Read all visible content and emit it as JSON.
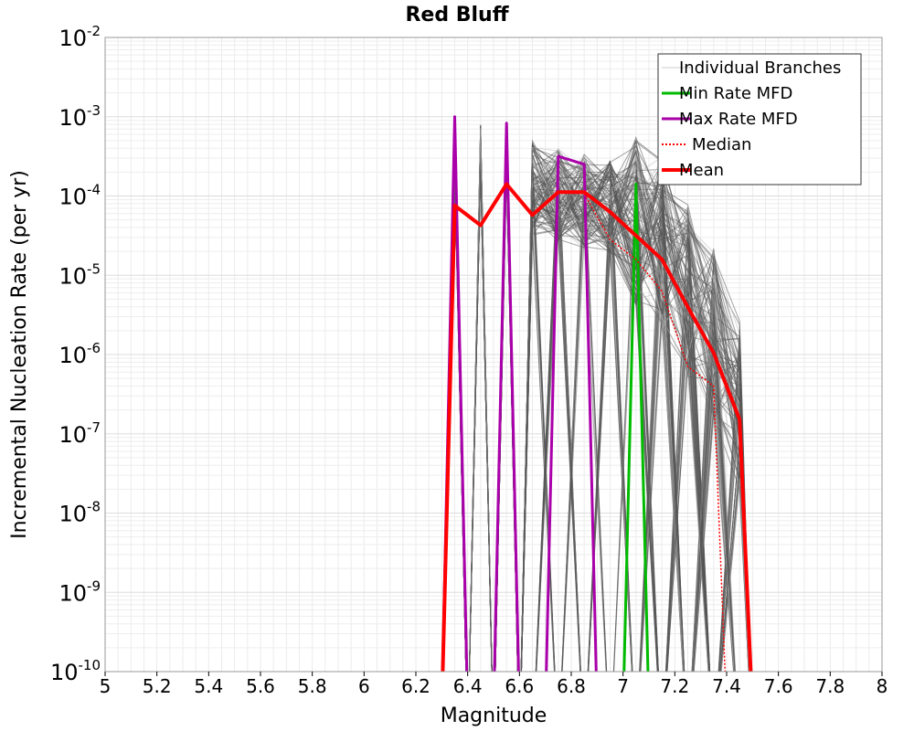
{
  "chart_data": {
    "type": "line",
    "title": "Red Bluff",
    "xlabel": "Magnitude",
    "ylabel": "Incremental Nucleation Rate (per yr)",
    "xlim": [
      5,
      8
    ],
    "ylim_log10": [
      -10,
      -2
    ],
    "y_scale": "log",
    "x_ticks": [
      5,
      5.2,
      5.4,
      5.6,
      5.8,
      6,
      6.2,
      6.4,
      6.6,
      6.8,
      7,
      7.2,
      7.4,
      7.6,
      7.8,
      8
    ],
    "x_tick_labels": [
      "5",
      "5.2",
      "5.4",
      "5.6",
      "5.8",
      "6",
      "6.2",
      "6.4",
      "6.6",
      "6.8",
      "7",
      "7.2",
      "7.4",
      "7.6",
      "7.8",
      "8"
    ],
    "y_ticks": [
      {
        "exp": -2,
        "base": "10",
        "sup": "-2"
      },
      {
        "exp": -3,
        "base": "10",
        "sup": "-3"
      },
      {
        "exp": -4,
        "base": "10",
        "sup": "-4"
      },
      {
        "exp": -5,
        "base": "10",
        "sup": "-5"
      },
      {
        "exp": -6,
        "base": "10",
        "sup": "-6"
      },
      {
        "exp": -7,
        "base": "10",
        "sup": "-7"
      },
      {
        "exp": -8,
        "base": "10",
        "sup": "-8"
      },
      {
        "exp": -9,
        "base": "10",
        "sup": "-9"
      },
      {
        "exp": -10,
        "base": "10",
        "sup": "-10"
      }
    ],
    "legend": {
      "position": "top-right",
      "entries": [
        {
          "label": "Individual Branches",
          "color": "#cccccc",
          "style": "thin"
        },
        {
          "label": "Min Rate MFD",
          "color": "#00bb00",
          "style": "solid"
        },
        {
          "label": "Max Rate MFD",
          "color": "#aa00aa",
          "style": "solid"
        },
        {
          "label": "Median",
          "color": "#ff0000",
          "style": "dotted"
        },
        {
          "label": "Mean",
          "color": "#ff0000",
          "style": "thick"
        }
      ]
    },
    "series": [
      {
        "name": "Min Rate MFD",
        "color": "#00bb00",
        "points": [
          [
            7.0,
            -10.5
          ],
          [
            7.05,
            -3.85
          ],
          [
            7.1,
            -10.5
          ]
        ]
      },
      {
        "name": "Max Rate MFD",
        "color": "#aa00aa",
        "points": [
          [
            6.3,
            -10.5
          ],
          [
            6.35,
            -3.0
          ],
          [
            6.4,
            -10.5
          ],
          [
            6.5,
            -10.5
          ],
          [
            6.55,
            -3.08
          ],
          [
            6.6,
            -10.5
          ],
          [
            6.7,
            -10.5
          ],
          [
            6.75,
            -3.5
          ],
          [
            6.85,
            -3.6
          ],
          [
            6.9,
            -10.5
          ]
        ]
      },
      {
        "name": "Median",
        "color": "#ff0000",
        "dash": true,
        "points": [
          [
            6.3,
            -10.5
          ],
          [
            6.35,
            -4.1
          ],
          [
            6.45,
            -4.37
          ],
          [
            6.55,
            -3.85
          ],
          [
            6.65,
            -4.24
          ],
          [
            6.75,
            -3.95
          ],
          [
            6.85,
            -3.97
          ],
          [
            6.95,
            -4.55
          ],
          [
            7.05,
            -4.8
          ],
          [
            7.15,
            -5.2
          ],
          [
            7.25,
            -6.15
          ],
          [
            7.35,
            -6.4
          ],
          [
            7.4,
            -10.5
          ]
        ]
      },
      {
        "name": "Mean",
        "color": "#ff0000",
        "points": [
          [
            6.3,
            -10.5
          ],
          [
            6.35,
            -4.12
          ],
          [
            6.45,
            -4.37
          ],
          [
            6.55,
            -3.85
          ],
          [
            6.65,
            -4.24
          ],
          [
            6.75,
            -3.95
          ],
          [
            6.85,
            -3.95
          ],
          [
            6.95,
            -4.2
          ],
          [
            7.05,
            -4.5
          ],
          [
            7.15,
            -4.8
          ],
          [
            7.25,
            -5.4
          ],
          [
            7.35,
            -5.98
          ],
          [
            7.45,
            -6.82
          ],
          [
            7.5,
            -10.5
          ]
        ]
      }
    ]
  }
}
